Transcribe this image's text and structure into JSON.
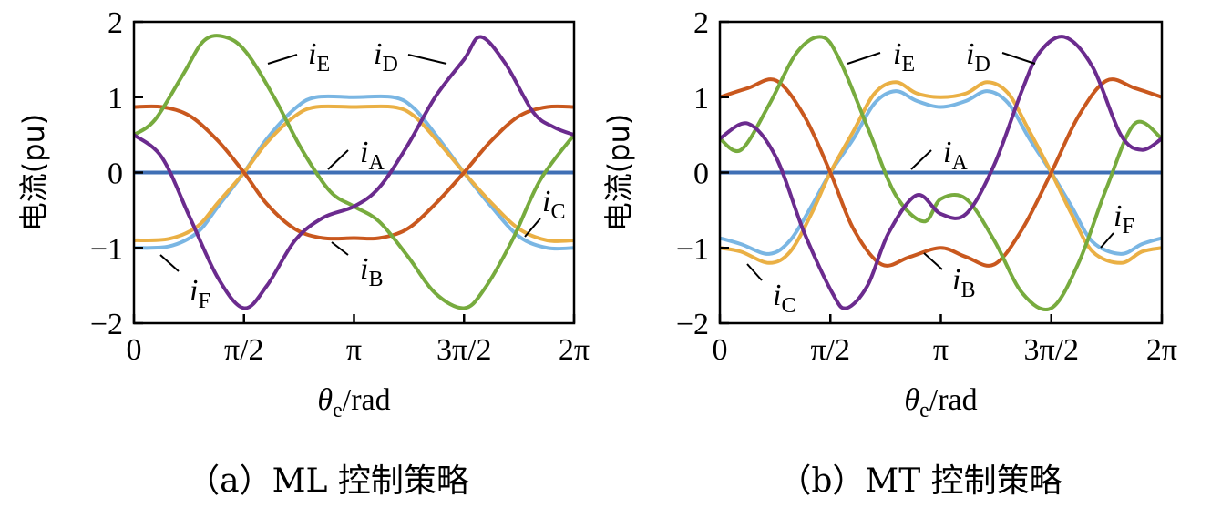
{
  "chart_data": [
    {
      "type": "line",
      "caption": "（a）ML 控制策略",
      "xlabel": {
        "main": "θ",
        "sub": "e",
        "unit": "/rad"
      },
      "ylabel": "电流(pu)",
      "xlim": [
        0,
        6.2832
      ],
      "ylim": [
        -2,
        2
      ],
      "x_ticks": [
        {
          "value": 0,
          "label": "0"
        },
        {
          "value": 1.5708,
          "label": "π/2"
        },
        {
          "value": 3.1416,
          "label": "π"
        },
        {
          "value": 4.7124,
          "label": "3π/2"
        },
        {
          "value": 6.2832,
          "label": "2π"
        }
      ],
      "y_ticks": [
        {
          "value": 2,
          "label": "2"
        },
        {
          "value": 1,
          "label": "1"
        },
        {
          "value": 0,
          "label": "0"
        },
        {
          "value": -1,
          "label": "−1"
        },
        {
          "value": -2,
          "label": "−2"
        }
      ],
      "grid": false,
      "series": [
        {
          "name": "A",
          "color": "#3f6fb5",
          "x": [
            0,
            6.2832
          ],
          "values": [
            0,
            0
          ]
        },
        {
          "name": "B",
          "color": "#c9581e",
          "x": [
            0,
            0.4,
            0.8,
            1.2,
            1.571,
            1.9,
            2.3,
            2.7,
            3.142,
            3.5,
            3.9,
            4.3,
            4.712,
            5.1,
            5.5,
            5.9,
            6.283
          ],
          "values": [
            0.87,
            0.87,
            0.75,
            0.42,
            0,
            -0.42,
            -0.75,
            -0.87,
            -0.87,
            -0.87,
            -0.75,
            -0.42,
            0,
            0.42,
            0.75,
            0.87,
            0.87
          ]
        },
        {
          "name": "C",
          "color": "#eab045",
          "x": [
            0,
            0.5,
            0.9,
            1.2,
            1.571,
            1.9,
            2.3,
            2.6,
            3.142,
            3.7,
            4.0,
            4.35,
            4.712,
            5.1,
            5.5,
            5.9,
            6.283
          ],
          "values": [
            -0.9,
            -0.88,
            -0.72,
            -0.4,
            0,
            0.4,
            0.75,
            0.87,
            0.87,
            0.87,
            0.75,
            0.4,
            0,
            -0.4,
            -0.75,
            -0.9,
            -0.9
          ]
        },
        {
          "name": "D",
          "color": "#6b2b8e",
          "x": [
            0,
            0.4,
            0.8,
            1.2,
            1.571,
            1.9,
            2.3,
            2.7,
            3.142,
            3.5,
            3.9,
            4.3,
            4.712,
            4.95,
            5.3,
            5.7,
            6.0,
            6.283
          ],
          "values": [
            0.5,
            0.2,
            -0.6,
            -1.4,
            -1.8,
            -1.5,
            -0.9,
            -0.6,
            -0.45,
            -0.2,
            0.35,
            1.0,
            1.5,
            1.8,
            1.45,
            0.8,
            0.6,
            0.5
          ]
        },
        {
          "name": "E",
          "color": "#77ab3e",
          "x": [
            0,
            0.3,
            0.7,
            1.0,
            1.3,
            1.6,
            2.0,
            2.4,
            2.8,
            3.142,
            3.5,
            3.9,
            4.3,
            4.712,
            5.0,
            5.4,
            5.8,
            6.283
          ],
          "values": [
            0.5,
            0.7,
            1.3,
            1.75,
            1.8,
            1.6,
            1.0,
            0.3,
            -0.25,
            -0.45,
            -0.65,
            -1.1,
            -1.6,
            -1.8,
            -1.55,
            -0.9,
            -0.1,
            0.5
          ]
        },
        {
          "name": "F",
          "color": "#7ab6e3",
          "x": [
            0,
            0.5,
            0.9,
            1.2,
            1.571,
            1.9,
            2.3,
            2.6,
            3.142,
            3.7,
            4.0,
            4.35,
            4.712,
            5.1,
            5.5,
            5.9,
            6.283
          ],
          "values": [
            -1.0,
            -0.98,
            -0.8,
            -0.45,
            0,
            0.45,
            0.85,
            1.0,
            1.0,
            1.0,
            0.85,
            0.45,
            0,
            -0.45,
            -0.85,
            -1.0,
            -1.0
          ]
        }
      ],
      "annotations": [
        {
          "series": "E",
          "main": "i",
          "sub": "E"
        },
        {
          "series": "D",
          "main": "i",
          "sub": "D"
        },
        {
          "series": "A",
          "main": "i",
          "sub": "A"
        },
        {
          "series": "C",
          "main": "i",
          "sub": "C"
        },
        {
          "series": "B",
          "main": "i",
          "sub": "B"
        },
        {
          "series": "F",
          "main": "i",
          "sub": "F"
        }
      ]
    },
    {
      "type": "line",
      "caption": "（b）MT 控制策略",
      "xlabel": {
        "main": "θ",
        "sub": "e",
        "unit": "/rad"
      },
      "ylabel": "电流(pu)",
      "xlim": [
        0,
        6.2832
      ],
      "ylim": [
        -2,
        2
      ],
      "x_ticks": [
        {
          "value": 0,
          "label": "0"
        },
        {
          "value": 1.5708,
          "label": "π/2"
        },
        {
          "value": 3.1416,
          "label": "π"
        },
        {
          "value": 4.7124,
          "label": "3π/2"
        },
        {
          "value": 6.2832,
          "label": "2π"
        }
      ],
      "y_ticks": [
        {
          "value": 2,
          "label": "2"
        },
        {
          "value": 1,
          "label": "1"
        },
        {
          "value": 0,
          "label": "0"
        },
        {
          "value": -1,
          "label": "−1"
        },
        {
          "value": -2,
          "label": "−2"
        }
      ],
      "grid": false,
      "series": [
        {
          "name": "A",
          "color": "#3f6fb5",
          "x": [
            0,
            6.2832
          ],
          "values": [
            0,
            0
          ]
        },
        {
          "name": "B",
          "color": "#c9581e",
          "x": [
            0,
            0.4,
            0.8,
            1.2,
            1.571,
            1.9,
            2.3,
            2.7,
            3.142,
            3.5,
            3.9,
            4.3,
            4.712,
            5.1,
            5.5,
            5.9,
            6.283
          ],
          "values": [
            1.0,
            1.12,
            1.22,
            0.75,
            0,
            -0.75,
            -1.22,
            -1.12,
            -1.0,
            -1.12,
            -1.22,
            -0.75,
            0,
            0.75,
            1.22,
            1.12,
            1.0
          ]
        },
        {
          "name": "C",
          "color": "#eab045",
          "x": [
            0,
            0.3,
            0.7,
            1.0,
            1.3,
            1.571,
            1.9,
            2.2,
            2.5,
            2.8,
            3.142,
            3.5,
            3.8,
            4.1,
            4.4,
            4.712,
            5.0,
            5.3,
            5.7,
            6.0,
            6.283
          ],
          "values": [
            -1.0,
            -1.05,
            -1.2,
            -1.05,
            -0.55,
            0,
            0.55,
            1.05,
            1.2,
            1.05,
            1.0,
            1.05,
            1.2,
            1.05,
            0.55,
            0,
            -0.55,
            -1.05,
            -1.2,
            -1.05,
            -1.0
          ]
        },
        {
          "name": "D",
          "color": "#6b2b8e",
          "x": [
            0,
            0.4,
            0.8,
            1.2,
            1.6,
            1.8,
            2.1,
            2.4,
            2.8,
            3.142,
            3.5,
            3.9,
            4.3,
            4.55,
            4.9,
            5.3,
            5.7,
            6.0,
            6.283
          ],
          "values": [
            0.45,
            0.65,
            0.2,
            -0.8,
            -1.6,
            -1.8,
            -1.5,
            -0.8,
            -0.3,
            -0.55,
            -0.55,
            0.1,
            1.1,
            1.6,
            1.8,
            1.4,
            0.5,
            0.3,
            0.45
          ]
        },
        {
          "name": "E",
          "color": "#77ab3e",
          "x": [
            0,
            0.3,
            0.7,
            1.1,
            1.45,
            1.7,
            2.1,
            2.5,
            2.9,
            3.142,
            3.5,
            3.9,
            4.3,
            4.712,
            5.1,
            5.5,
            5.9,
            6.283
          ],
          "values": [
            0.45,
            0.3,
            0.9,
            1.6,
            1.8,
            1.5,
            0.6,
            -0.3,
            -0.65,
            -0.35,
            -0.35,
            -0.9,
            -1.6,
            -1.8,
            -1.2,
            -0.2,
            0.65,
            0.45
          ]
        },
        {
          "name": "F",
          "color": "#7ab6e3",
          "x": [
            0,
            0.3,
            0.7,
            1.0,
            1.3,
            1.571,
            1.9,
            2.2,
            2.5,
            2.8,
            3.142,
            3.5,
            3.8,
            4.1,
            4.4,
            4.712,
            5.0,
            5.3,
            5.7,
            6.0,
            6.283
          ],
          "values": [
            -0.87,
            -0.95,
            -1.08,
            -0.9,
            -0.45,
            0,
            0.45,
            0.92,
            1.08,
            0.95,
            0.87,
            0.95,
            1.08,
            0.92,
            0.45,
            0,
            -0.45,
            -0.92,
            -1.08,
            -0.95,
            -0.87
          ]
        }
      ],
      "annotations": [
        {
          "series": "E",
          "main": "i",
          "sub": "E"
        },
        {
          "series": "D",
          "main": "i",
          "sub": "D"
        },
        {
          "series": "A",
          "main": "i",
          "sub": "A"
        },
        {
          "series": "F",
          "main": "i",
          "sub": "F"
        },
        {
          "series": "B",
          "main": "i",
          "sub": "B"
        },
        {
          "series": "C",
          "main": "i",
          "sub": "C"
        }
      ]
    }
  ]
}
